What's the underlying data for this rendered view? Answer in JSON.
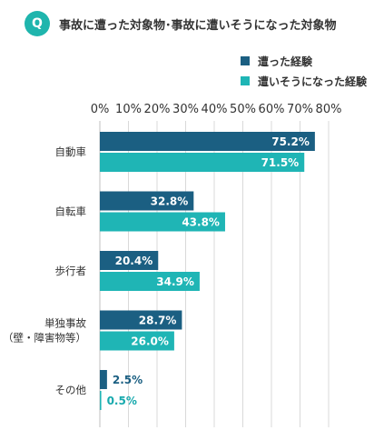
{
  "header": {
    "icon_letter": "Q",
    "title": "事故に遭った対象物･事故に遭いそうになった対象物"
  },
  "colors": {
    "accent": "#1fb5ad",
    "series_0": "#1b5f82",
    "series_1": "#1fb5b5",
    "grid": "#d9d9d9"
  },
  "chart_data": {
    "type": "bar",
    "orientation": "horizontal",
    "title": "事故に遭った対象物･事故に遭いそうになった対象物",
    "categories": [
      [
        "自動車"
      ],
      [
        "自転車"
      ],
      [
        "歩行者"
      ],
      [
        "単独事故",
        "（壁・障害物等）"
      ],
      [
        "その他"
      ]
    ],
    "series": [
      {
        "name": "遭った経験",
        "values": [
          75.2,
          32.8,
          20.4,
          28.7,
          2.5
        ]
      },
      {
        "name": "遭いそうになった経験",
        "values": [
          71.5,
          43.8,
          34.9,
          26.0,
          0.5
        ]
      }
    ],
    "x_ticks": [
      "0%",
      "10%",
      "20%",
      "30%",
      "40%",
      "50%",
      "60%",
      "70%",
      "80%"
    ],
    "xlim": [
      0,
      80
    ],
    "grid": true,
    "legend": "top-right",
    "value_format": "%"
  }
}
